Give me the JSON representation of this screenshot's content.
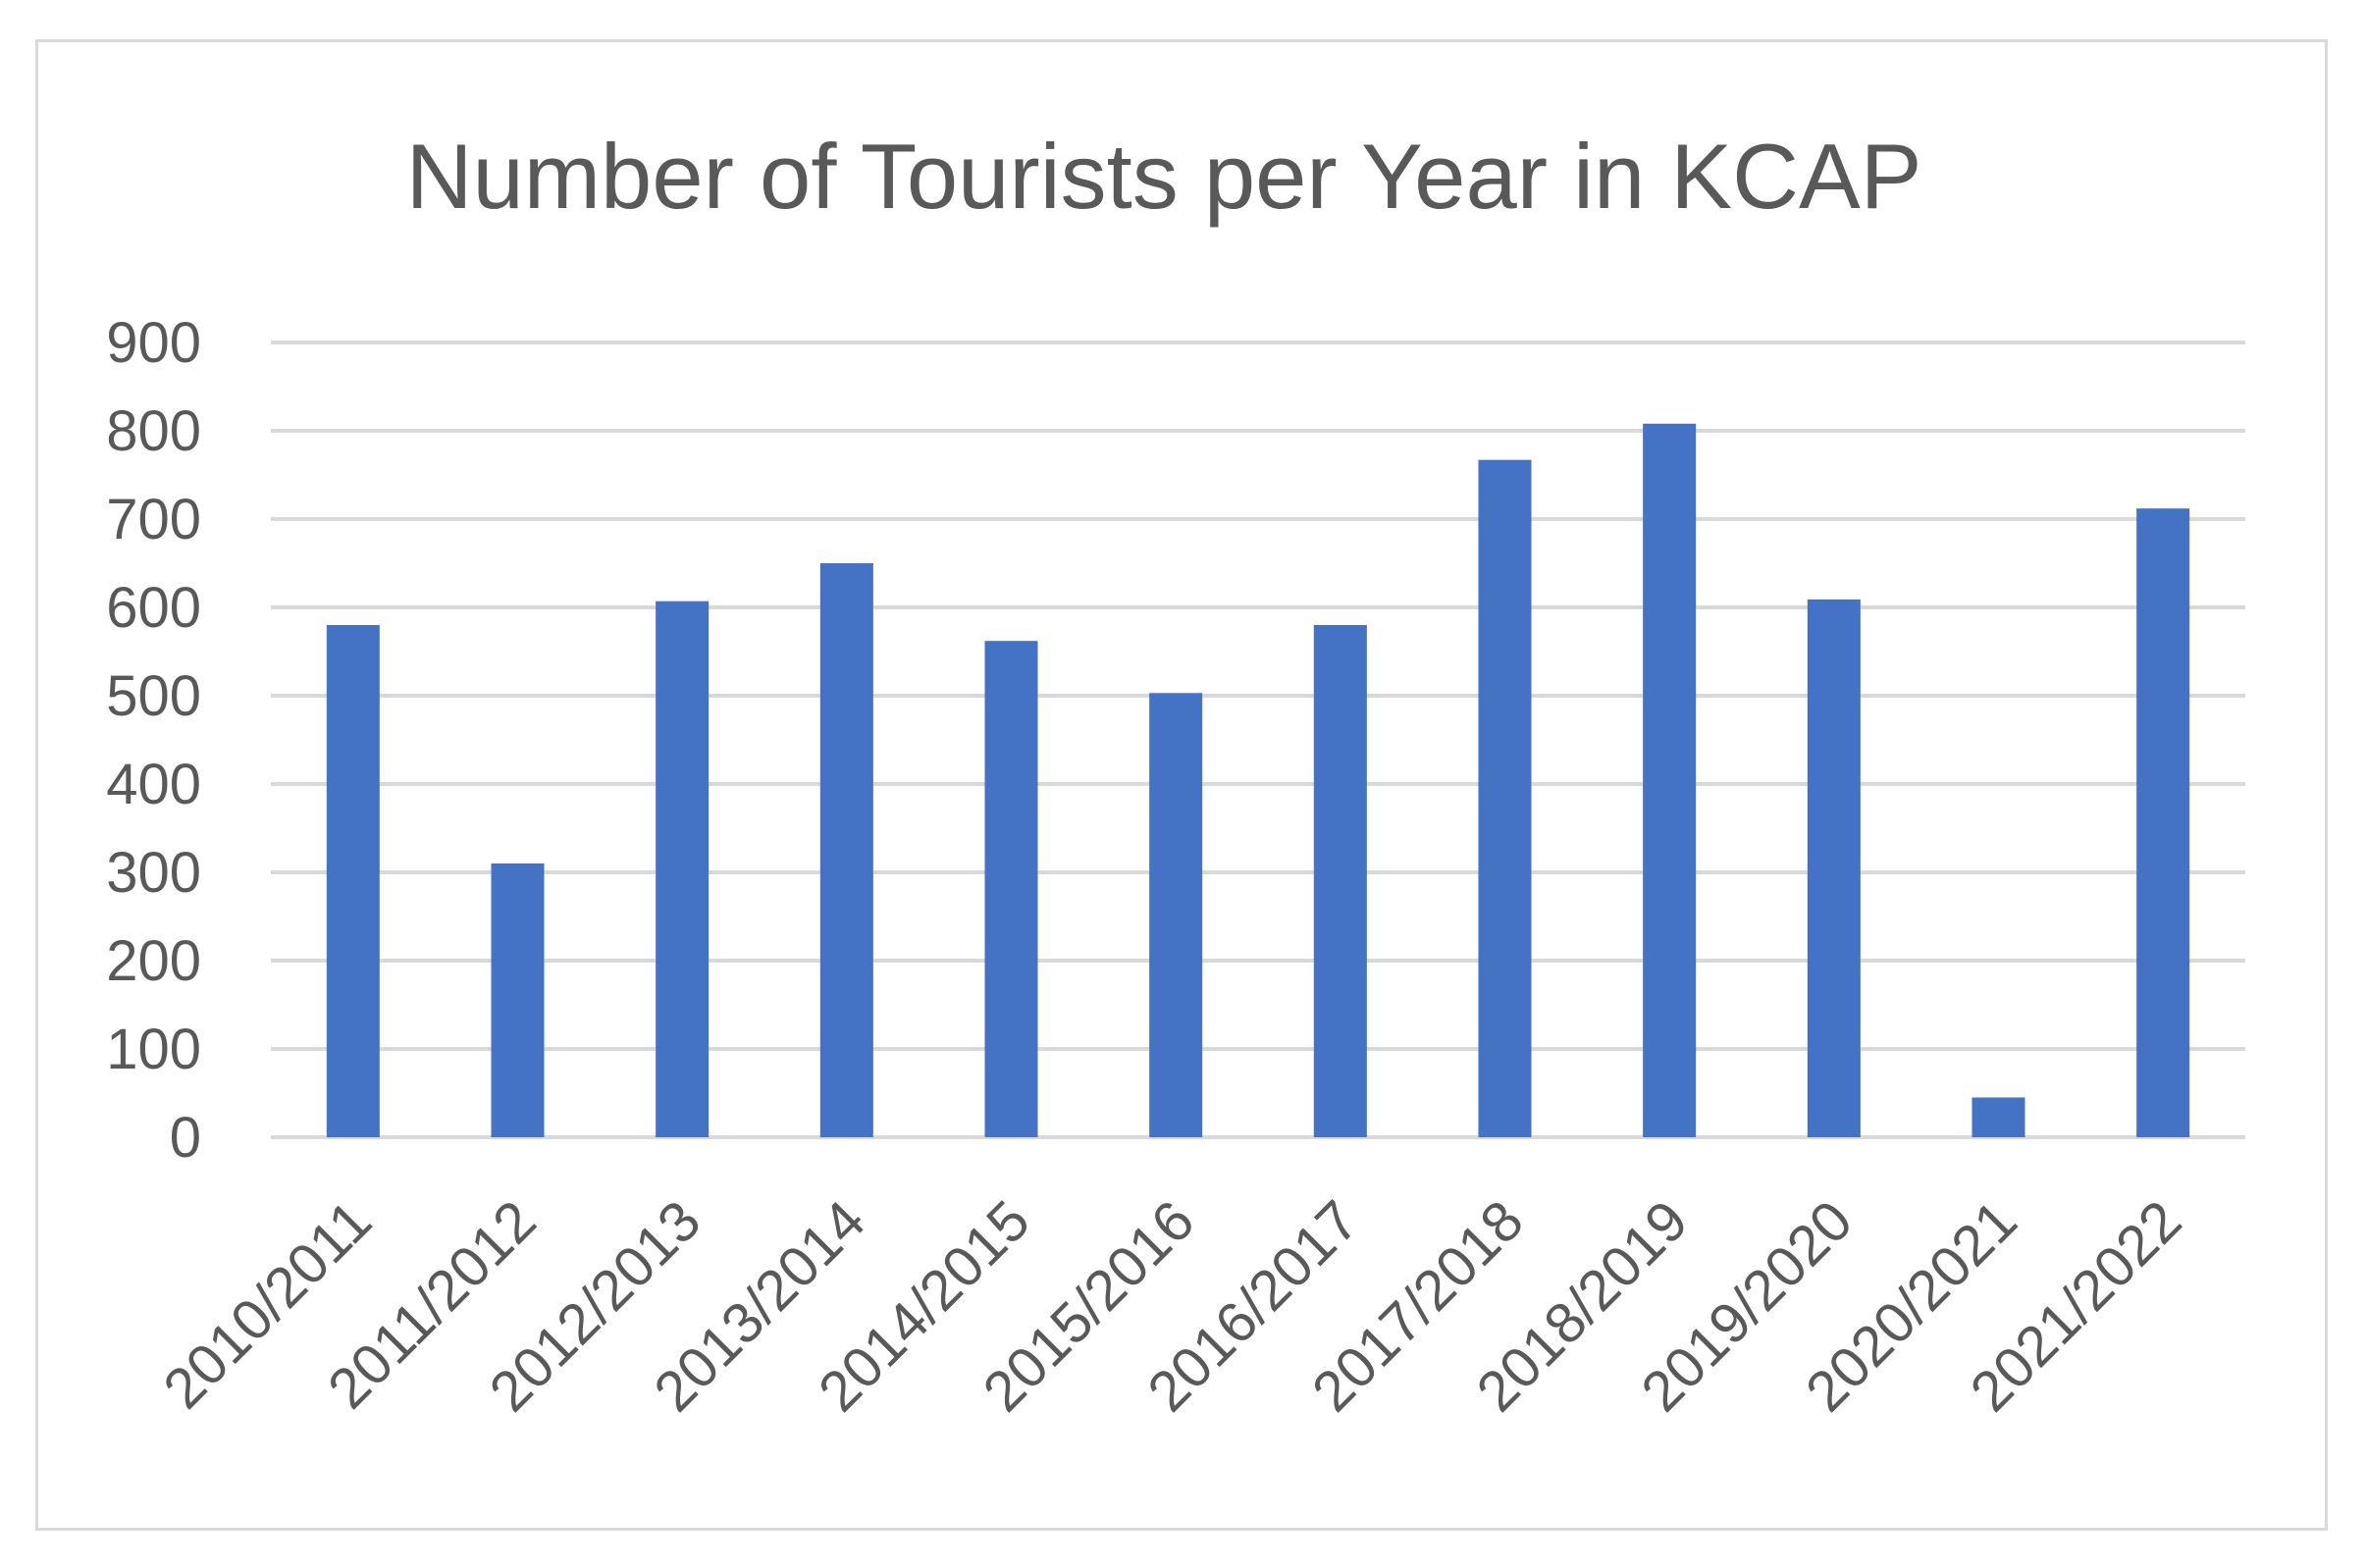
{
  "chart_data": {
    "type": "bar",
    "title": "Number of Tourists per Year in KCAP",
    "xlabel": "",
    "ylabel": "",
    "categories": [
      "2010/2011",
      "2011/2012",
      "2012/2013",
      "2013/2014",
      "2014/2015",
      "2015/2016",
      "2016/2017",
      "2017/2018",
      "2018/2019",
      "2019/2020",
      "2020/2021",
      "2021/2022"
    ],
    "values": [
      580,
      310,
      607,
      650,
      562,
      503,
      580,
      767,
      808,
      609,
      45,
      712
    ],
    "ylim": [
      0,
      900
    ],
    "yticks": [
      "0",
      "100",
      "200",
      "300",
      "400",
      "500",
      "600",
      "700",
      "800",
      "900"
    ],
    "grid": true,
    "legend": "none",
    "colors": {
      "bar": "#4472c4",
      "grid": "#d9d9d9",
      "text": "#595959",
      "border": "#d9d9d9"
    }
  }
}
